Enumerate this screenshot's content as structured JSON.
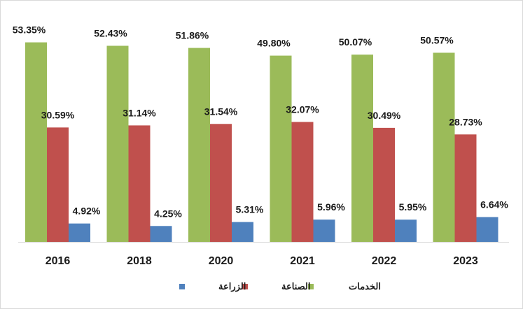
{
  "chart_data": {
    "type": "bar",
    "categories": [
      "2016",
      "2018",
      "2020",
      "2021",
      "2022",
      "2023"
    ],
    "series": [
      {
        "name": "الخدمات",
        "color": "#9BBB59",
        "values": [
          53.35,
          52.43,
          51.86,
          49.8,
          50.07,
          50.57
        ],
        "labels": [
          "53.35%",
          "52.43%",
          "51.86%",
          "49.80%",
          "50.07%",
          "50.57%"
        ]
      },
      {
        "name": "الصناعة",
        "color": "#C0504D",
        "values": [
          30.59,
          31.14,
          31.54,
          32.07,
          30.49,
          28.73
        ],
        "labels": [
          "30.59%",
          "31.14%",
          "31.54%",
          "32.07%",
          "30.49%",
          "28.73%"
        ]
      },
      {
        "name": "الزراعة",
        "color": "#4F81BD",
        "values": [
          4.92,
          4.25,
          5.31,
          5.96,
          5.95,
          6.64
        ],
        "labels": [
          "4.92%",
          "4.25%",
          "5.31%",
          "5.96%",
          "5.95%",
          "6.64%"
        ]
      }
    ],
    "ylim": [
      0,
      60
    ],
    "grid": false,
    "legend": "bottom-center"
  }
}
